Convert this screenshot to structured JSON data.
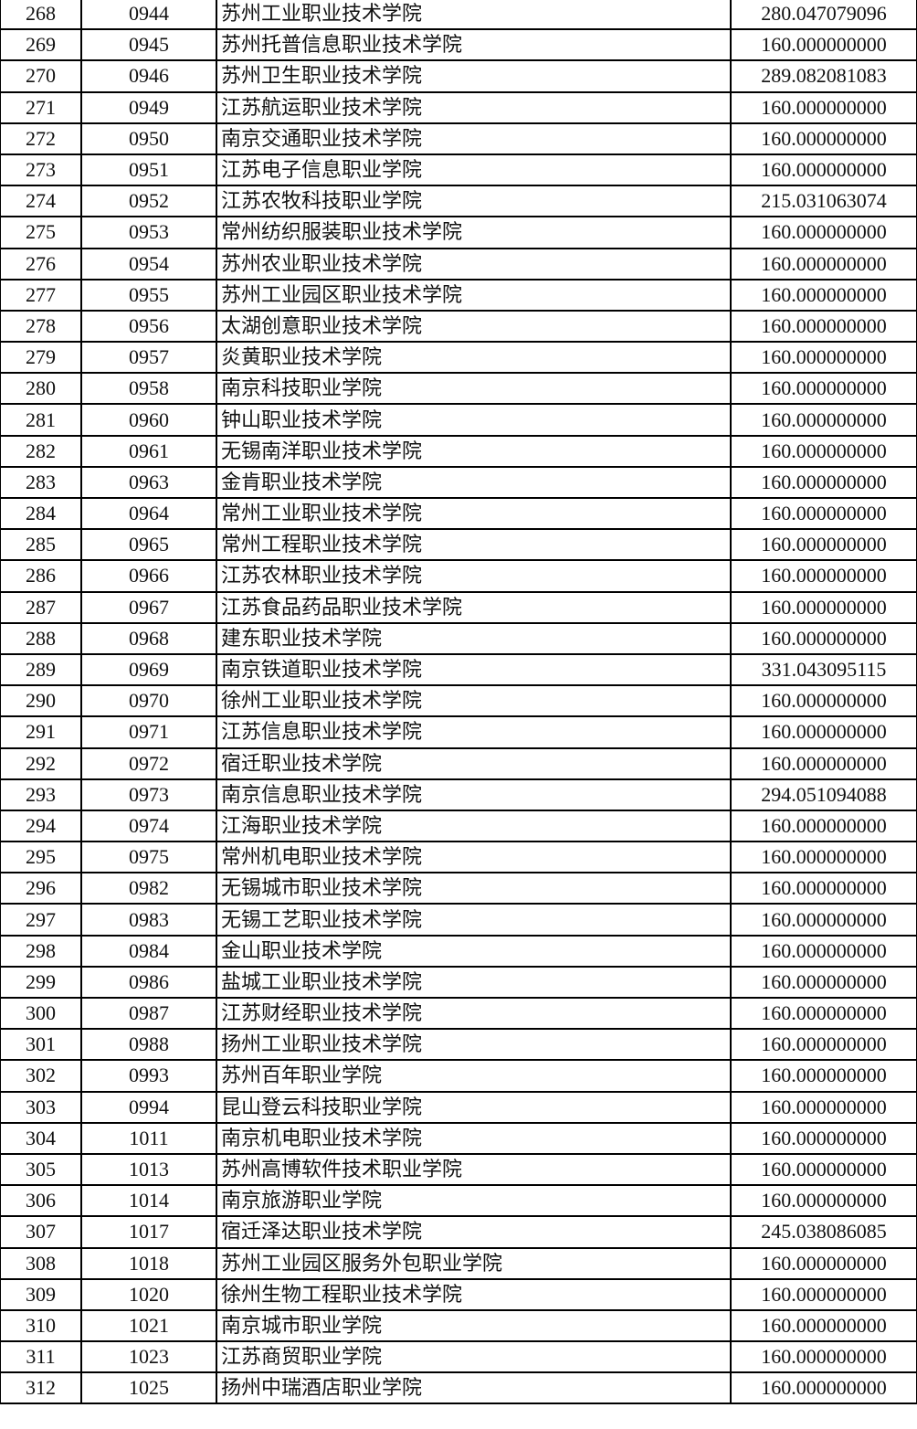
{
  "rows": [
    [
      "268",
      "0944",
      "苏州工业职业技术学院",
      "280.047079096"
    ],
    [
      "269",
      "0945",
      "苏州托普信息职业技术学院",
      "160.000000000"
    ],
    [
      "270",
      "0946",
      "苏州卫生职业技术学院",
      "289.082081083"
    ],
    [
      "271",
      "0949",
      "江苏航运职业技术学院",
      "160.000000000"
    ],
    [
      "272",
      "0950",
      "南京交通职业技术学院",
      "160.000000000"
    ],
    [
      "273",
      "0951",
      "江苏电子信息职业学院",
      "160.000000000"
    ],
    [
      "274",
      "0952",
      "江苏农牧科技职业学院",
      "215.031063074"
    ],
    [
      "275",
      "0953",
      "常州纺织服装职业技术学院",
      "160.000000000"
    ],
    [
      "276",
      "0954",
      "苏州农业职业技术学院",
      "160.000000000"
    ],
    [
      "277",
      "0955",
      "苏州工业园区职业技术学院",
      "160.000000000"
    ],
    [
      "278",
      "0956",
      "太湖创意职业技术学院",
      "160.000000000"
    ],
    [
      "279",
      "0957",
      "炎黄职业技术学院",
      "160.000000000"
    ],
    [
      "280",
      "0958",
      "南京科技职业学院",
      "160.000000000"
    ],
    [
      "281",
      "0960",
      "钟山职业技术学院",
      "160.000000000"
    ],
    [
      "282",
      "0961",
      "无锡南洋职业技术学院",
      "160.000000000"
    ],
    [
      "283",
      "0963",
      "金肯职业技术学院",
      "160.000000000"
    ],
    [
      "284",
      "0964",
      "常州工业职业技术学院",
      "160.000000000"
    ],
    [
      "285",
      "0965",
      "常州工程职业技术学院",
      "160.000000000"
    ],
    [
      "286",
      "0966",
      "江苏农林职业技术学院",
      "160.000000000"
    ],
    [
      "287",
      "0967",
      "江苏食品药品职业技术学院",
      "160.000000000"
    ],
    [
      "288",
      "0968",
      "建东职业技术学院",
      "160.000000000"
    ],
    [
      "289",
      "0969",
      "南京铁道职业技术学院",
      "331.043095115"
    ],
    [
      "290",
      "0970",
      "徐州工业职业技术学院",
      "160.000000000"
    ],
    [
      "291",
      "0971",
      "江苏信息职业技术学院",
      "160.000000000"
    ],
    [
      "292",
      "0972",
      "宿迁职业技术学院",
      "160.000000000"
    ],
    [
      "293",
      "0973",
      "南京信息职业技术学院",
      "294.051094088"
    ],
    [
      "294",
      "0974",
      "江海职业技术学院",
      "160.000000000"
    ],
    [
      "295",
      "0975",
      "常州机电职业技术学院",
      "160.000000000"
    ],
    [
      "296",
      "0982",
      "无锡城市职业技术学院",
      "160.000000000"
    ],
    [
      "297",
      "0983",
      "无锡工艺职业技术学院",
      "160.000000000"
    ],
    [
      "298",
      "0984",
      "金山职业技术学院",
      "160.000000000"
    ],
    [
      "299",
      "0986",
      "盐城工业职业技术学院",
      "160.000000000"
    ],
    [
      "300",
      "0987",
      "江苏财经职业技术学院",
      "160.000000000"
    ],
    [
      "301",
      "0988",
      "扬州工业职业技术学院",
      "160.000000000"
    ],
    [
      "302",
      "0993",
      "苏州百年职业学院",
      "160.000000000"
    ],
    [
      "303",
      "0994",
      "昆山登云科技职业学院",
      "160.000000000"
    ],
    [
      "304",
      "1011",
      "南京机电职业技术学院",
      "160.000000000"
    ],
    [
      "305",
      "1013",
      "苏州高博软件技术职业学院",
      "160.000000000"
    ],
    [
      "306",
      "1014",
      "南京旅游职业学院",
      "160.000000000"
    ],
    [
      "307",
      "1017",
      "宿迁泽达职业技术学院",
      "245.038086085"
    ],
    [
      "308",
      "1018",
      "苏州工业园区服务外包职业学院",
      "160.000000000"
    ],
    [
      "309",
      "1020",
      "徐州生物工程职业技术学院",
      "160.000000000"
    ],
    [
      "310",
      "1021",
      "南京城市职业学院",
      "160.000000000"
    ],
    [
      "311",
      "1023",
      "江苏商贸职业学院",
      "160.000000000"
    ],
    [
      "312",
      "1025",
      "扬州中瑞酒店职业学院",
      "160.000000000"
    ]
  ]
}
